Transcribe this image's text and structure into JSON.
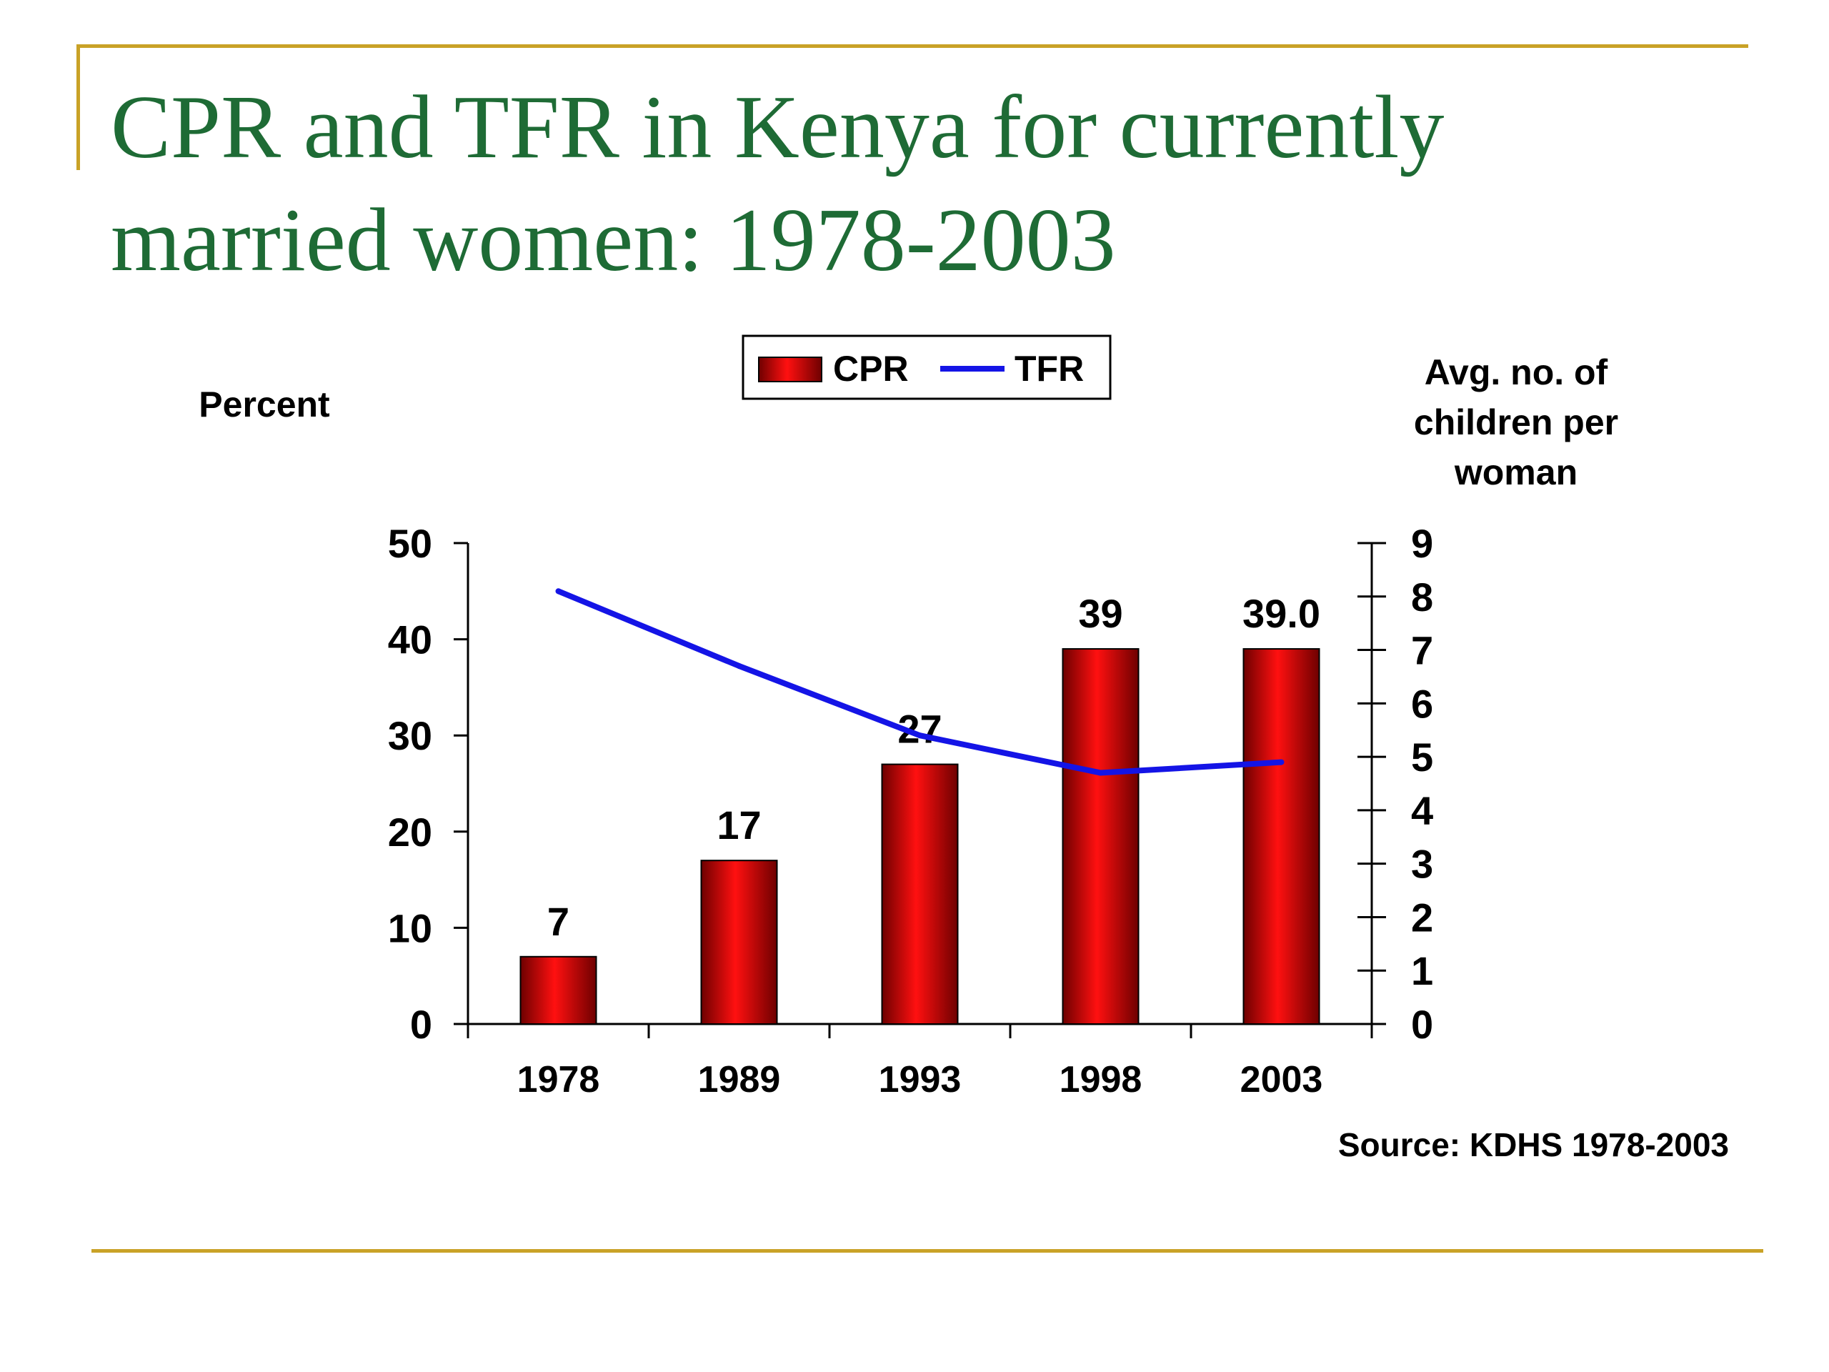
{
  "slide": {
    "title_line1": "CPR and TFR in Kenya for currently",
    "title_line2": "married women: 1978-2003"
  },
  "colors": {
    "accent_rule": "#C9A227",
    "title": "#1E6B35",
    "bar": "#E00000",
    "line": "#1414E6"
  },
  "chart_data": {
    "type": "bar",
    "categories": [
      "1978",
      "1989",
      "1993",
      "1998",
      "2003"
    ],
    "series": [
      {
        "name": "CPR",
        "type": "bar",
        "axis": "left",
        "values": [
          7,
          17,
          27,
          39,
          39.0
        ],
        "labels": [
          "7",
          "17",
          "27",
          "39",
          "39.0"
        ]
      },
      {
        "name": "TFR",
        "type": "line",
        "axis": "right",
        "values": [
          8.1,
          6.7,
          5.4,
          4.7,
          4.9
        ]
      }
    ],
    "ylabel": "Percent",
    "y2label": [
      "Avg. no. of",
      "children per",
      "woman"
    ],
    "ylim": [
      0,
      50
    ],
    "yticks": [
      "0",
      "10",
      "20",
      "30",
      "40",
      "50"
    ],
    "y2lim": [
      0,
      9
    ],
    "y2ticks": [
      "0",
      "1",
      "2",
      "3",
      "4",
      "5",
      "6",
      "7",
      "8",
      "9"
    ],
    "legend": {
      "position": "top-center",
      "entries": [
        "CPR",
        "TFR"
      ]
    },
    "grid": false,
    "source": "Source: KDHS 1978-2003"
  }
}
